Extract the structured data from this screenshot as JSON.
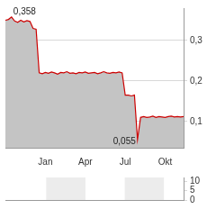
{
  "chart_data": [
    {
      "type": "line",
      "categories": [
        null,
        null,
        null,
        null,
        null,
        null,
        null,
        null,
        null,
        null,
        null,
        null,
        null,
        "Jan",
        null,
        null,
        null,
        null,
        null,
        null,
        null,
        null,
        null,
        null,
        null,
        null,
        "Apr",
        null,
        null,
        null,
        null,
        null,
        null,
        null,
        null,
        null,
        null,
        null,
        null,
        "Jul",
        null,
        null,
        null,
        null,
        null,
        null,
        null,
        null,
        null,
        null,
        null,
        null,
        "Okt",
        null,
        null,
        null,
        null,
        null,
        null
      ],
      "values": [
        0.35,
        0.352,
        0.358,
        0.348,
        0.345,
        0.35,
        0.346,
        0.349,
        0.347,
        0.33,
        0.328,
        0.22,
        0.218,
        0.221,
        0.219,
        0.222,
        0.22,
        0.217,
        0.221,
        0.22,
        0.223,
        0.219,
        0.22,
        0.218,
        0.221,
        0.22,
        0.222,
        0.219,
        0.22,
        0.221,
        0.218,
        0.22,
        0.223,
        0.22,
        0.219,
        0.221,
        0.22,
        0.222,
        0.22,
        0.165,
        0.165,
        0.163,
        0.165,
        0.055,
        0.11,
        0.112,
        0.11,
        0.111,
        0.113,
        0.11,
        0.112,
        0.111,
        0.11,
        0.112,
        0.113,
        0.111,
        0.112,
        0.111,
        0.112
      ],
      "color": "#cc0000",
      "ylim": [
        0.035,
        0.38
      ],
      "yticks": [
        {
          "value": 0.1,
          "label": "0,1"
        },
        {
          "value": 0.2,
          "label": "0,2"
        },
        {
          "value": 0.3,
          "label": "0,3"
        }
      ],
      "annotations": [
        {
          "value": 0.358,
          "label": "0,358"
        },
        {
          "value": 0.055,
          "label": "0,055"
        }
      ],
      "grid": true
    },
    {
      "type": "bar",
      "categories": [
        null,
        null,
        null,
        null,
        null,
        null,
        null,
        null,
        null,
        null,
        null,
        null,
        null,
        "Jan",
        null,
        null,
        null,
        null,
        null,
        null,
        null,
        null,
        null,
        null,
        null,
        null,
        "Apr",
        null,
        null,
        null,
        null,
        null,
        null,
        null,
        null,
        null,
        null,
        null,
        null,
        "Jul",
        null,
        null,
        null,
        null,
        null,
        null,
        null,
        null,
        null,
        null,
        null,
        null,
        "Okt",
        null,
        null,
        null,
        null,
        null,
        null
      ],
      "values": [
        null,
        null,
        null,
        null,
        null,
        null,
        null,
        null,
        null,
        null,
        null,
        null,
        null,
        null,
        null,
        null,
        null,
        null,
        null,
        null,
        null,
        null,
        null,
        null,
        null,
        null,
        null,
        null,
        null,
        null,
        null,
        null,
        null,
        null,
        null,
        null,
        null,
        null,
        null,
        null,
        null,
        null,
        null,
        null,
        null,
        null,
        null,
        null,
        null,
        null,
        null,
        null,
        null,
        null,
        null,
        null,
        null,
        null,
        null
      ],
      "ylim": [
        0,
        12
      ],
      "yticks": [
        0,
        5,
        10
      ],
      "tick_labels": "y"
    }
  ]
}
